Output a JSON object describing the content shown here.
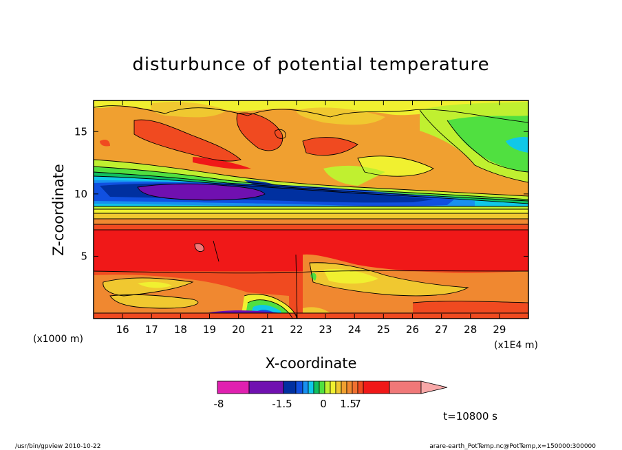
{
  "chart_data": {
    "type": "heatmap",
    "title": "disturbunce of potential temperature",
    "xlabel": "X-coordinate",
    "ylabel": "Z-coordinate",
    "x_unit": "(x1E4 m)",
    "y_unit": "(x1000 m)",
    "xlim": [
      15,
      30
    ],
    "ylim": [
      0,
      17.5
    ],
    "x_ticks": [
      16,
      17,
      18,
      19,
      20,
      21,
      22,
      23,
      24,
      25,
      26,
      27,
      28,
      29
    ],
    "y_ticks": [
      5,
      10,
      15
    ],
    "colorbar": {
      "levels": [
        -8,
        -4,
        -1.5,
        -1.25,
        -1,
        -0.75,
        -0.5,
        -0.25,
        0,
        0.25,
        0.5,
        0.75,
        1,
        1.25,
        1.5,
        3,
        5,
        7
      ],
      "colors": [
        "#e020b0",
        "#7010b0",
        "#0030a0",
        "#1050e0",
        "#1890f0",
        "#10c8e8",
        "#10c060",
        "#50e040",
        "#c0f030",
        "#f0f030",
        "#f0c830",
        "#f0a030",
        "#f08830",
        "#f07030",
        "#f04a20",
        "#f01818",
        "#f07878",
        "#f8a8a8"
      ],
      "tick_labels": [
        "-8",
        "-1.5",
        "0",
        "1.5",
        "7"
      ]
    },
    "annotation": "t=10800 s"
  },
  "footer": {
    "left": "/usr/bin/gpview   2010-10-22",
    "right": "arare-earth_PotTemp.nc@PotTemp,x=150000:300000"
  }
}
